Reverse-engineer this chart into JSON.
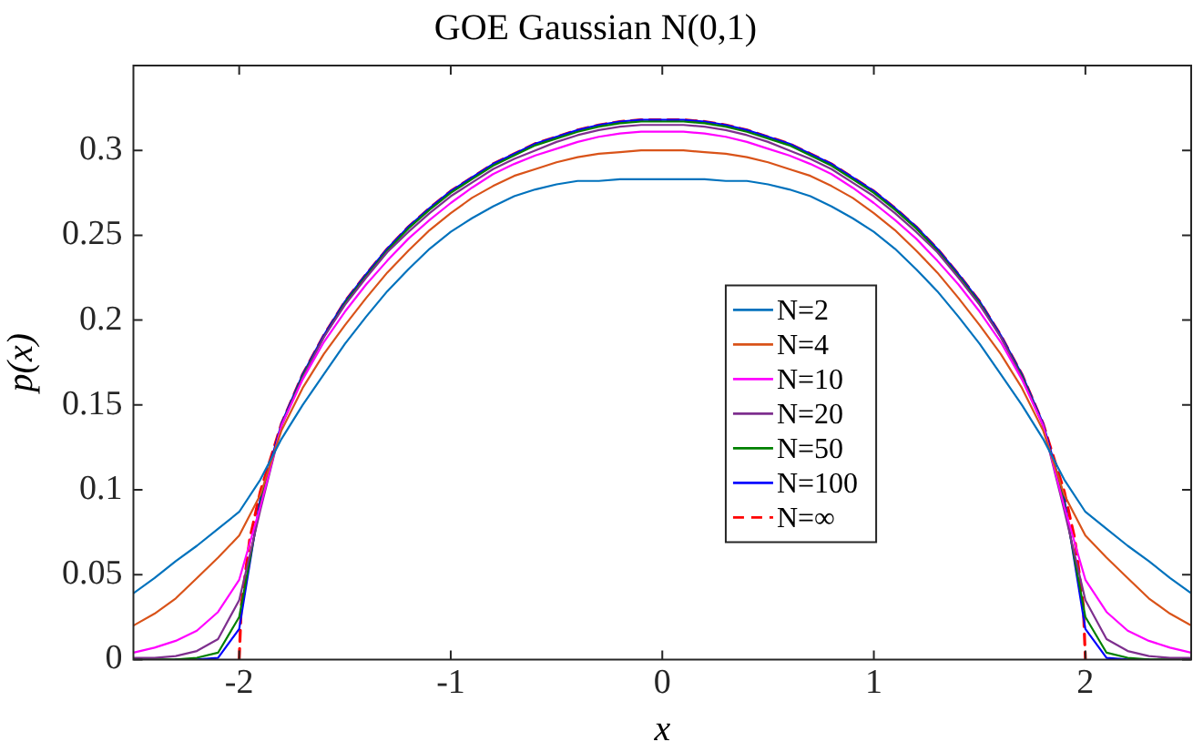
{
  "chart_data": {
    "type": "line",
    "title": "GOE Gaussian N(0,1)",
    "xlabel": "x",
    "ylabel": "p(x)",
    "x": [
      -2.5,
      -2.4,
      -2.3,
      -2.2,
      -2.1,
      -2.0,
      -1.9,
      -1.8,
      -1.7,
      -1.6,
      -1.5,
      -1.4,
      -1.3,
      -1.2,
      -1.1,
      -1.0,
      -0.9,
      -0.8,
      -0.7,
      -0.6,
      -0.5,
      -0.4,
      -0.3,
      -0.2,
      -0.1,
      0,
      0.1,
      0.2,
      0.3,
      0.4,
      0.5,
      0.6,
      0.7,
      0.8,
      0.9,
      1.0,
      1.1,
      1.2,
      1.3,
      1.4,
      1.5,
      1.6,
      1.7,
      1.8,
      1.9,
      2.0,
      2.1,
      2.2,
      2.3,
      2.4,
      2.5
    ],
    "xlim": [
      -2.5,
      2.5
    ],
    "xticks": [
      -2,
      -1,
      0,
      1,
      2
    ],
    "ylim": [
      0,
      0.35
    ],
    "yticks": [
      0,
      0.05,
      0.1,
      0.15,
      0.2,
      0.25,
      0.3
    ],
    "grid": false,
    "legend": "right",
    "marker": "none",
    "series": [
      {
        "name": "N=2",
        "color": "#0072bd",
        "values": [
          0.039,
          0.048,
          0.058,
          0.067,
          0.077,
          0.087,
          0.106,
          0.13,
          0.15,
          0.168,
          0.186,
          0.202,
          0.217,
          0.23,
          0.242,
          0.252,
          0.26,
          0.267,
          0.273,
          0.277,
          0.28,
          0.282,
          0.282,
          0.283,
          0.283,
          0.283,
          0.283,
          0.283,
          0.282,
          0.282,
          0.28,
          0.277,
          0.273,
          0.267,
          0.26,
          0.252,
          0.242,
          0.23,
          0.217,
          0.202,
          0.186,
          0.168,
          0.15,
          0.13,
          0.106,
          0.087,
          0.077,
          0.067,
          0.058,
          0.048,
          0.039
        ]
      },
      {
        "name": "N=4",
        "color": "#d95319",
        "values": [
          0.02,
          0.027,
          0.036,
          0.048,
          0.06,
          0.073,
          0.097,
          0.135,
          0.16,
          0.18,
          0.197,
          0.213,
          0.228,
          0.241,
          0.253,
          0.263,
          0.272,
          0.279,
          0.285,
          0.289,
          0.293,
          0.296,
          0.298,
          0.299,
          0.3,
          0.3,
          0.3,
          0.299,
          0.298,
          0.296,
          0.293,
          0.289,
          0.285,
          0.279,
          0.272,
          0.263,
          0.253,
          0.241,
          0.228,
          0.213,
          0.197,
          0.18,
          0.16,
          0.135,
          0.097,
          0.073,
          0.06,
          0.048,
          0.036,
          0.027,
          0.02
        ]
      },
      {
        "name": "N=10",
        "color": "#ff00ff",
        "values": [
          0.004,
          0.007,
          0.011,
          0.017,
          0.028,
          0.047,
          0.09,
          0.138,
          0.165,
          0.187,
          0.205,
          0.221,
          0.235,
          0.248,
          0.259,
          0.269,
          0.278,
          0.286,
          0.292,
          0.297,
          0.301,
          0.305,
          0.308,
          0.31,
          0.311,
          0.311,
          0.311,
          0.31,
          0.308,
          0.305,
          0.301,
          0.297,
          0.292,
          0.286,
          0.278,
          0.269,
          0.259,
          0.248,
          0.235,
          0.221,
          0.205,
          0.187,
          0.165,
          0.138,
          0.09,
          0.047,
          0.028,
          0.017,
          0.011,
          0.007,
          0.004
        ]
      },
      {
        "name": "N=20",
        "color": "#7e2f8e",
        "values": [
          0.001,
          0.001,
          0.002,
          0.005,
          0.012,
          0.035,
          0.088,
          0.138,
          0.166,
          0.19,
          0.209,
          0.225,
          0.24,
          0.252,
          0.263,
          0.273,
          0.281,
          0.289,
          0.295,
          0.3,
          0.305,
          0.309,
          0.312,
          0.314,
          0.315,
          0.315,
          0.315,
          0.314,
          0.312,
          0.309,
          0.305,
          0.3,
          0.295,
          0.289,
          0.281,
          0.273,
          0.263,
          0.252,
          0.24,
          0.225,
          0.209,
          0.19,
          0.166,
          0.138,
          0.088,
          0.035,
          0.012,
          0.005,
          0.002,
          0.001,
          0.001
        ]
      },
      {
        "name": "N=50",
        "color": "#008000",
        "values": [
          0,
          0,
          0,
          0.001,
          0.004,
          0.025,
          0.092,
          0.138,
          0.167,
          0.19,
          0.21,
          0.226,
          0.241,
          0.254,
          0.265,
          0.275,
          0.283,
          0.291,
          0.297,
          0.303,
          0.307,
          0.311,
          0.314,
          0.316,
          0.317,
          0.317,
          0.317,
          0.316,
          0.314,
          0.311,
          0.307,
          0.303,
          0.297,
          0.291,
          0.283,
          0.275,
          0.265,
          0.254,
          0.241,
          0.226,
          0.21,
          0.19,
          0.167,
          0.138,
          0.092,
          0.025,
          0.004,
          0.001,
          0,
          0,
          0
        ]
      },
      {
        "name": "N=100",
        "color": "#0000ff",
        "values": [
          null,
          null,
          0,
          0,
          0.001,
          0.018,
          0.095,
          0.139,
          0.168,
          0.191,
          0.211,
          0.227,
          0.242,
          0.255,
          0.266,
          0.276,
          0.284,
          0.292,
          0.298,
          0.304,
          0.308,
          0.312,
          0.315,
          0.317,
          0.318,
          0.318,
          0.318,
          0.317,
          0.315,
          0.312,
          0.308,
          0.304,
          0.298,
          0.292,
          0.284,
          0.276,
          0.266,
          0.255,
          0.242,
          0.227,
          0.211,
          0.191,
          0.168,
          0.139,
          0.095,
          0.018,
          0.001,
          0,
          0,
          null,
          null
        ]
      },
      {
        "name": "N=∞",
        "color": "#ff0000",
        "line_style": "dashed",
        "x": [
          -2,
          -1.99,
          -1.95,
          -1.9,
          -1.8,
          -1.7,
          -1.6,
          -1.5,
          -1.4,
          -1.3,
          -1.2,
          -1.1,
          -1.0,
          -0.9,
          -0.8,
          -0.7,
          -0.6,
          -0.5,
          -0.4,
          -0.3,
          -0.2,
          -0.1,
          0,
          0.1,
          0.2,
          0.3,
          0.4,
          0.5,
          0.6,
          0.7,
          0.8,
          0.9,
          1.0,
          1.1,
          1.2,
          1.3,
          1.4,
          1.5,
          1.6,
          1.7,
          1.8,
          1.9,
          1.95,
          1.99,
          2
        ],
        "values": [
          0,
          0.032,
          0.071,
          0.099,
          0.139,
          0.168,
          0.191,
          0.211,
          0.227,
          0.242,
          0.255,
          0.266,
          0.276,
          0.284,
          0.292,
          0.298,
          0.304,
          0.308,
          0.312,
          0.315,
          0.317,
          0.318,
          0.318,
          0.318,
          0.317,
          0.315,
          0.312,
          0.308,
          0.304,
          0.298,
          0.292,
          0.284,
          0.276,
          0.266,
          0.255,
          0.242,
          0.227,
          0.211,
          0.191,
          0.168,
          0.139,
          0.099,
          0.071,
          0.032,
          0
        ]
      }
    ]
  }
}
